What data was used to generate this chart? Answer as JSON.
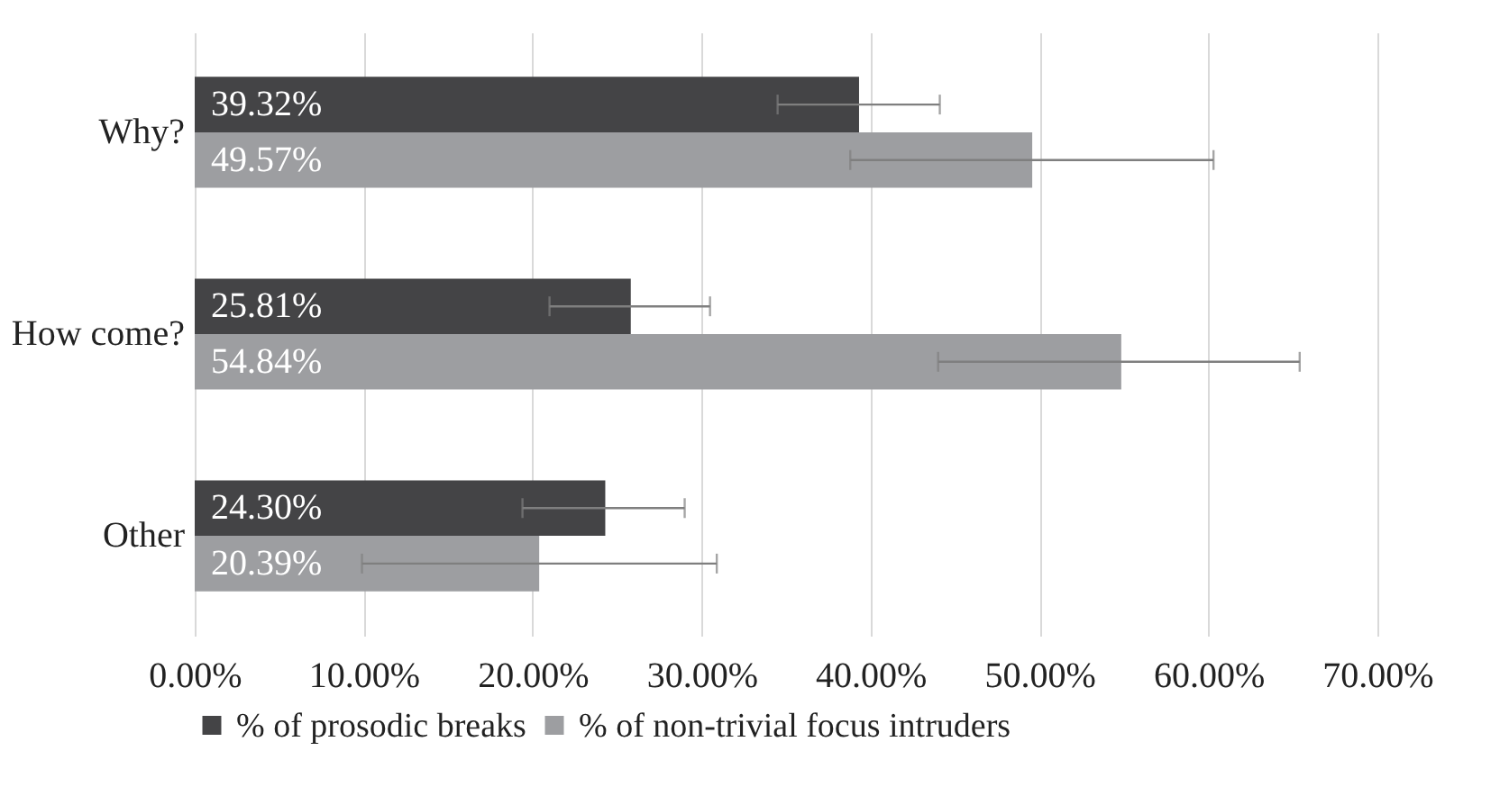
{
  "chart_data": {
    "type": "bar",
    "orientation": "horizontal",
    "categories": [
      "Why?",
      "How come?",
      "Other"
    ],
    "series": [
      {
        "name": "% of prosodic breaks",
        "color": "#444446",
        "values": [
          39.32,
          25.81,
          24.3
        ],
        "value_labels": [
          "39.32%",
          "25.81%",
          "24.30%"
        ],
        "errors": [
          [
            34.5,
            44.1
          ],
          [
            21.0,
            30.5
          ],
          [
            19.4,
            29.0
          ]
        ]
      },
      {
        "name": "% of non-trivial focus intruders",
        "color": "#9d9ea1",
        "values": [
          49.57,
          54.84,
          20.39
        ],
        "value_labels": [
          "49.57%",
          "54.84%",
          "20.39%"
        ],
        "errors": [
          [
            38.8,
            60.3
          ],
          [
            44.0,
            65.4
          ],
          [
            9.9,
            30.9
          ]
        ]
      }
    ],
    "xlim": [
      0,
      70
    ],
    "xticks": [
      {
        "value": 0,
        "label": "0.00%"
      },
      {
        "value": 10,
        "label": "10.00%"
      },
      {
        "value": 20,
        "label": "20.00%"
      },
      {
        "value": 30,
        "label": "30.00%"
      },
      {
        "value": 40,
        "label": "40.00%"
      },
      {
        "value": 50,
        "label": "50.00%"
      },
      {
        "value": 60,
        "label": "60.00%"
      },
      {
        "value": 70,
        "label": "70.00%"
      }
    ],
    "grid": "x",
    "legend": "bottom"
  }
}
